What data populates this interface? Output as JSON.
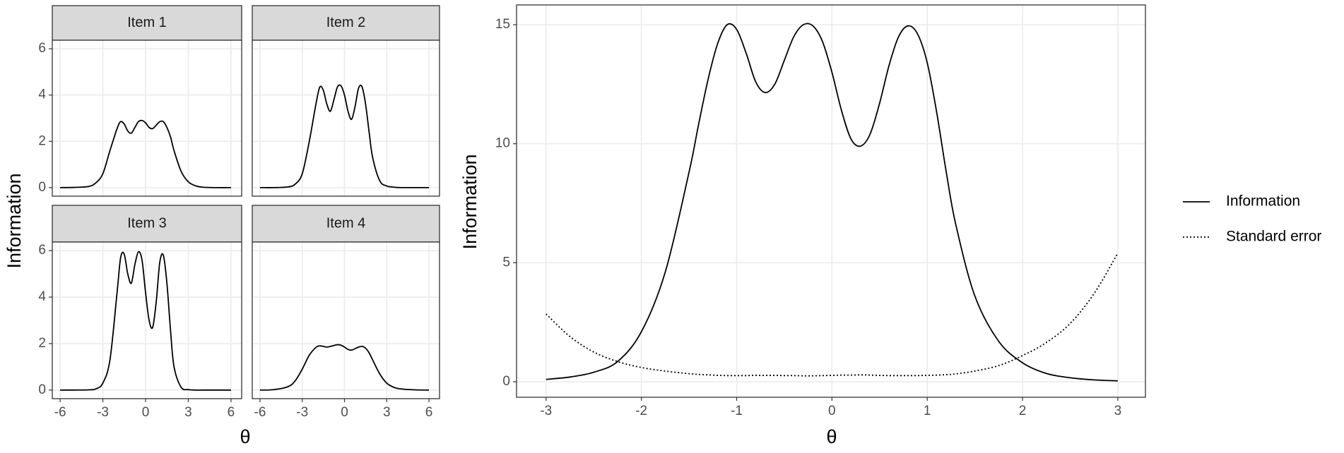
{
  "chart_data": [
    {
      "type": "line",
      "facet": true,
      "xlabel": "θ",
      "ylabel": "Information",
      "x": [
        -6,
        -5,
        -4,
        -3.5,
        -3,
        -2.5,
        -2,
        -1.75,
        -1.5,
        -1.25,
        -1,
        -0.75,
        -0.5,
        -0.25,
        0,
        0.25,
        0.5,
        0.75,
        1,
        1.25,
        1.5,
        1.75,
        2,
        2.5,
        3,
        3.5,
        4,
        5,
        6
      ],
      "xlim": [
        -6.55,
        6.75
      ],
      "ylim": [
        -0.37,
        6.37
      ],
      "xticks": [
        -6,
        -3,
        0,
        3,
        6
      ],
      "yticks": [
        0,
        2,
        4,
        6
      ],
      "grid": true,
      "color": "#000000",
      "panels": [
        {
          "title": "Item 1",
          "values": [
            0,
            0.01,
            0.05,
            0.2,
            0.6,
            1.6,
            2.55,
            2.85,
            2.75,
            2.45,
            2.35,
            2.6,
            2.85,
            2.9,
            2.8,
            2.6,
            2.55,
            2.7,
            2.85,
            2.85,
            2.6,
            2.2,
            1.6,
            0.7,
            0.25,
            0.08,
            0.02,
            0,
            0
          ]
        },
        {
          "title": "Item 2",
          "values": [
            0,
            0,
            0.03,
            0.15,
            0.6,
            2.0,
            3.7,
            4.35,
            4.2,
            3.6,
            3.3,
            3.8,
            4.35,
            4.4,
            4.0,
            3.3,
            2.95,
            3.5,
            4.3,
            4.35,
            3.6,
            2.4,
            1.3,
            0.3,
            0.07,
            0.02,
            0,
            0,
            0
          ]
        },
        {
          "title": "Item 3",
          "values": [
            0,
            0,
            0.01,
            0.05,
            0.3,
            1.3,
            4.2,
            5.7,
            5.85,
            5.0,
            4.6,
            5.4,
            5.95,
            5.6,
            4.2,
            3.0,
            2.7,
            3.8,
            5.5,
            5.8,
            4.6,
            2.6,
            1.0,
            0.12,
            0.02,
            0,
            0,
            0,
            0
          ]
        },
        {
          "title": "Item 4",
          "values": [
            0,
            0.02,
            0.15,
            0.4,
            0.9,
            1.5,
            1.85,
            1.9,
            1.88,
            1.85,
            1.88,
            1.92,
            1.95,
            1.93,
            1.85,
            1.75,
            1.72,
            1.78,
            1.85,
            1.88,
            1.8,
            1.6,
            1.3,
            0.7,
            0.3,
            0.12,
            0.05,
            0.01,
            0
          ]
        }
      ]
    },
    {
      "type": "line",
      "xlabel": "θ",
      "ylabel": "Information",
      "x": [
        -3,
        -2.75,
        -2.5,
        -2.25,
        -2,
        -1.75,
        -1.5,
        -1.4,
        -1.3,
        -1.2,
        -1.1,
        -1,
        -0.9,
        -0.8,
        -0.7,
        -0.6,
        -0.5,
        -0.4,
        -0.3,
        -0.2,
        -0.1,
        0,
        0.1,
        0.2,
        0.3,
        0.4,
        0.5,
        0.6,
        0.7,
        0.8,
        0.9,
        1,
        1.1,
        1.2,
        1.3,
        1.5,
        1.75,
        2,
        2.25,
        2.5,
        2.75,
        3
      ],
      "xlim": [
        -3.31,
        3.29
      ],
      "ylim": [
        -0.65,
        15.83
      ],
      "xticks": [
        -3,
        -2,
        -1,
        0,
        1,
        2,
        3
      ],
      "yticks": [
        0,
        5,
        10,
        15
      ],
      "grid": true,
      "series": [
        {
          "name": "Information",
          "color": "#000000",
          "dash": "solid",
          "values": [
            0.1,
            0.2,
            0.4,
            0.85,
            2.1,
            4.6,
            8.8,
            10.8,
            12.7,
            14.2,
            15.0,
            14.8,
            13.8,
            12.6,
            12.15,
            12.5,
            13.5,
            14.5,
            15.0,
            14.95,
            14.3,
            13.0,
            11.4,
            10.2,
            9.9,
            10.4,
            11.7,
            13.3,
            14.5,
            14.95,
            14.6,
            13.4,
            11.3,
            8.8,
            6.6,
            3.6,
            1.7,
            0.8,
            0.35,
            0.17,
            0.08,
            0.04
          ]
        },
        {
          "name": "Standard error",
          "color": "#000000",
          "dash": "dotted",
          "values": [
            2.85,
            1.9,
            1.25,
            0.85,
            0.6,
            0.45,
            0.34,
            0.31,
            0.29,
            0.27,
            0.26,
            0.26,
            0.26,
            0.27,
            0.27,
            0.27,
            0.26,
            0.26,
            0.25,
            0.25,
            0.26,
            0.27,
            0.28,
            0.28,
            0.29,
            0.28,
            0.27,
            0.26,
            0.26,
            0.26,
            0.26,
            0.27,
            0.28,
            0.3,
            0.33,
            0.45,
            0.68,
            1.1,
            1.65,
            2.45,
            3.7,
            5.4
          ]
        }
      ]
    }
  ]
}
